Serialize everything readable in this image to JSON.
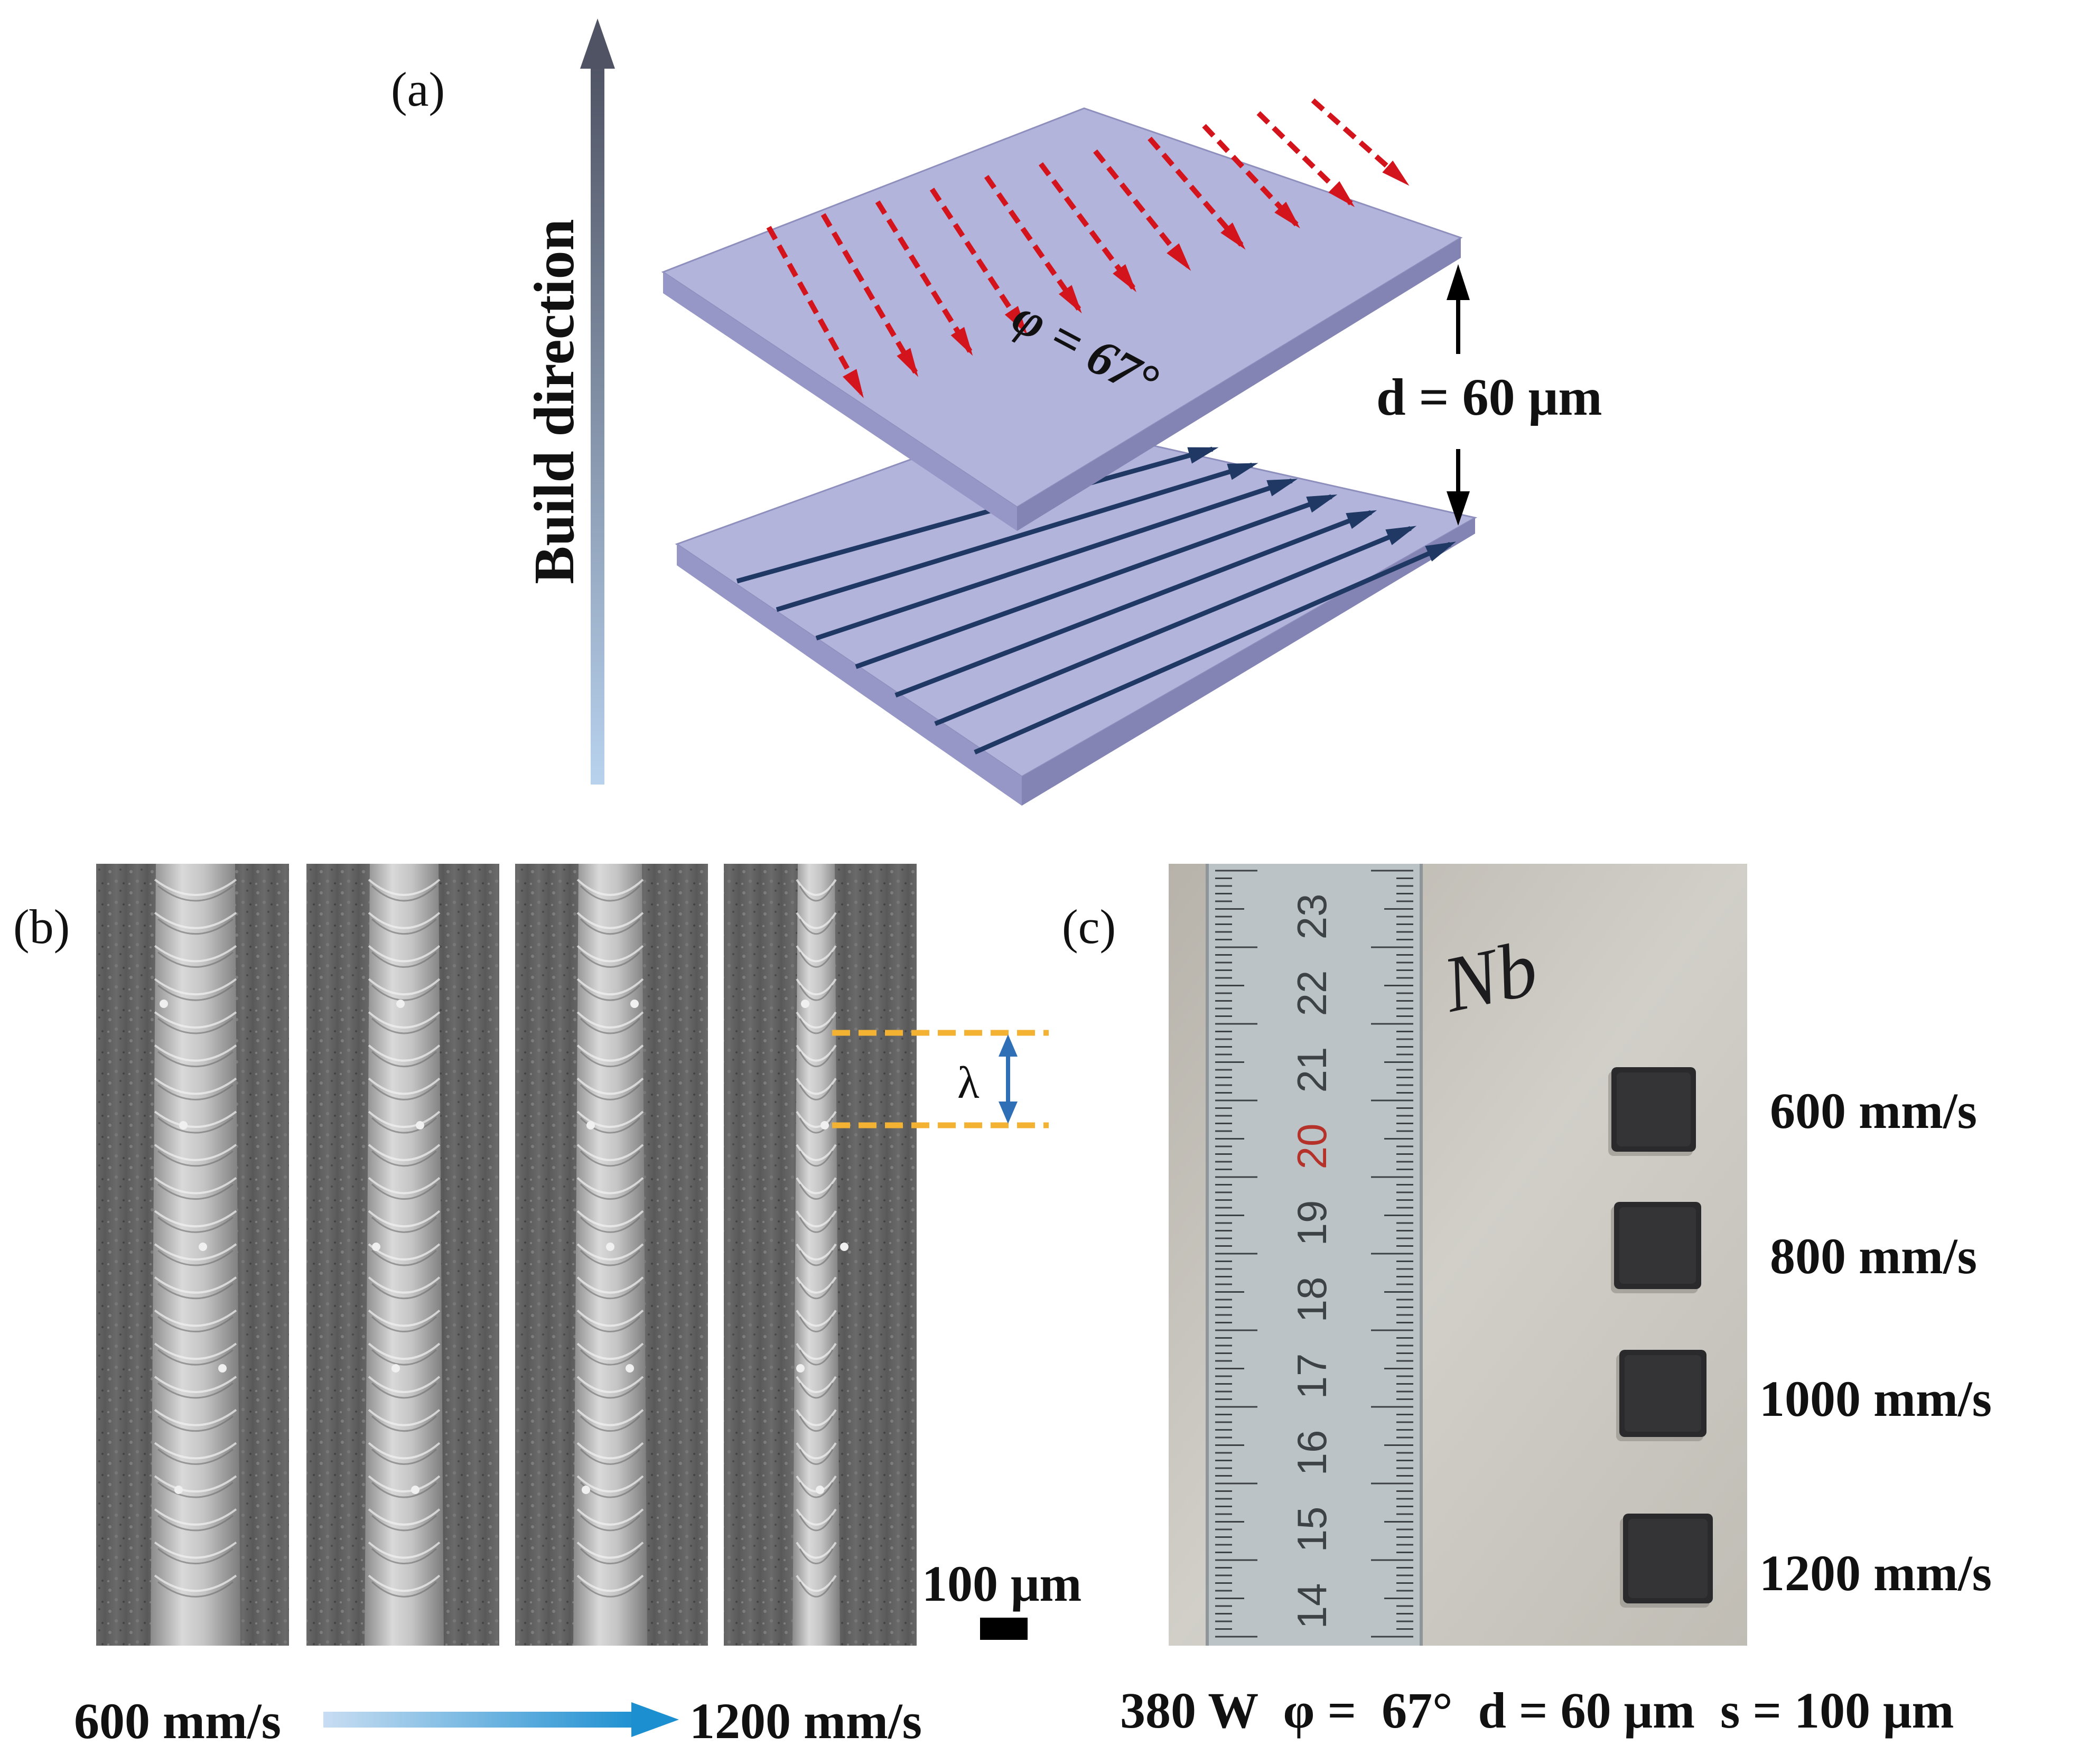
{
  "panel_a": {
    "label": "(a)",
    "build_direction": "Build direction",
    "rotation_angle": "φ = 67°",
    "layer_thickness": "d = 60 μm",
    "colors": {
      "plate_top": "#b3b4dc",
      "plate_side": "#8e8fbd",
      "plate_edge": "#7a7ba8",
      "red_scan": "#d4141c",
      "blue_scan": "#1f3864",
      "arrow_dark": "#5a5e6e",
      "arrow_light": "#b8d2ee"
    },
    "icons": [
      "build-direction-arrow",
      "layer-gap-arrow"
    ]
  },
  "panel_b": {
    "label": "(b)",
    "wavelength_symbol": "λ",
    "scale_bar": "100 μm",
    "speed_start": "600 mm/s",
    "speed_end": "1200 mm/s",
    "colors": {
      "dashed_guide": "#f4b233",
      "lambda_arrow": "#2e6fb5",
      "gradient_start": "#c8ddf2",
      "gradient_end": "#1c8fd0"
    }
  },
  "panel_c": {
    "label": "(c)",
    "handwritten": "Nb",
    "ruler_ticks": [
      "23",
      "22",
      "21",
      "20",
      "19",
      "18",
      "17",
      "16",
      "15",
      "14"
    ],
    "highlight_tick": "20",
    "samples": [
      {
        "speed": "600 mm/s"
      },
      {
        "speed": "800 mm/s"
      },
      {
        "speed": "1000 mm/s"
      },
      {
        "speed": "1200 mm/s"
      }
    ],
    "params": "380 W  φ =  67°  d = 60 μm  s = 100 μm",
    "colors": {
      "photo_bg": "#c9c6bf",
      "ruler": "#bcc3c6",
      "sample": "#2a2a2c",
      "red_numeral": "#b5322a"
    }
  }
}
